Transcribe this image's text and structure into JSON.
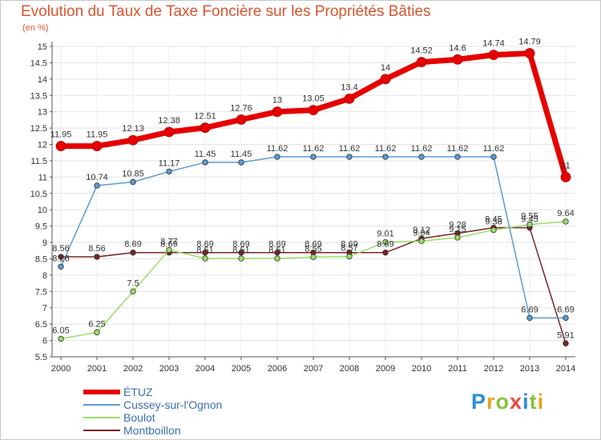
{
  "header": {
    "title": "Evolution du Taux de Taxe Foncière sur les Propriétés Bâties",
    "unit": "(en %)"
  },
  "logo": {
    "letters": [
      "P",
      "r",
      "o",
      "x",
      "i",
      "t",
      "i"
    ],
    "colors": [
      "#2a8fd8",
      "#e8a022",
      "#88c33a",
      "#e84c3d",
      "#2a8fd8",
      "#88c33a",
      "#e8a022"
    ]
  },
  "chart_data": {
    "type": "line",
    "title": "Evolution du Taux de Taxe Foncière sur les Propriétés Bâties",
    "ylabel": "(en %)",
    "xlabel": "",
    "x": [
      "2000",
      "2001",
      "2002",
      "2003",
      "2004",
      "2005",
      "2006",
      "2007",
      "2008",
      "2009",
      "2010",
      "2011",
      "2012",
      "2013",
      "2014"
    ],
    "ylim": [
      5.5,
      15
    ],
    "yticks": [
      "5.5",
      "6",
      "6.5",
      "7",
      "7.5",
      "8",
      "8.5",
      "9",
      "9.5",
      "10",
      "10.5",
      "11",
      "11.5",
      "12",
      "12.5",
      "13",
      "13.5",
      "14",
      "14.5",
      "15"
    ],
    "grid": true,
    "legend_position": "bottom-left",
    "series": [
      {
        "name": "ÉTUZ",
        "color": "#e60000",
        "labels": [
          "11.95",
          "11.95",
          "12.13",
          "12.38",
          "12.51",
          "12.76",
          "13",
          "13.05",
          "13.4",
          "14",
          "14.52",
          "14.6",
          "14.74",
          "14.79",
          "11"
        ],
        "values": [
          11.95,
          11.95,
          12.13,
          12.38,
          12.51,
          12.76,
          13,
          13.05,
          13.4,
          14,
          14.52,
          14.6,
          14.74,
          14.79,
          11
        ]
      },
      {
        "name": "Cussey-sur-l'Ognon",
        "color": "#5b9bd5",
        "labels": [
          "8.26",
          "10.74",
          "10.85",
          "11.17",
          "11.45",
          "11.45",
          "11.62",
          "11.62",
          "11.62",
          "11.62",
          "11.62",
          "11.62",
          "11.62",
          "6.69",
          "6.69"
        ],
        "values": [
          8.26,
          10.74,
          10.85,
          11.17,
          11.45,
          11.45,
          11.62,
          11.62,
          11.62,
          11.62,
          11.62,
          11.62,
          11.62,
          6.69,
          6.69
        ]
      },
      {
        "name": "Boulot",
        "color": "#99dd66",
        "labels": [
          "6.05",
          "6.25",
          "7.5",
          "8.77",
          "8.51",
          "8.51",
          "8.51",
          "8.55",
          "8.57",
          "9.01",
          "9.04",
          "9.15",
          "9.38",
          "9.55",
          "9.64"
        ],
        "values": [
          6.05,
          6.25,
          7.5,
          8.77,
          8.51,
          8.51,
          8.51,
          8.55,
          8.57,
          9.01,
          9.04,
          9.15,
          9.38,
          9.55,
          9.64
        ]
      },
      {
        "name": "Montboillon",
        "color": "#7a2424",
        "labels": [
          "8.56",
          "8.56",
          "8.69",
          "8.69",
          "8.69",
          "8.69",
          "8.69",
          "8.69",
          "8.69",
          "8.69",
          "9.12",
          "9.28",
          "9.45",
          "9.45",
          "5.91"
        ],
        "values": [
          8.56,
          8.56,
          8.69,
          8.69,
          8.69,
          8.69,
          8.69,
          8.69,
          8.69,
          8.69,
          9.12,
          9.28,
          9.45,
          9.45,
          5.91
        ]
      }
    ]
  }
}
